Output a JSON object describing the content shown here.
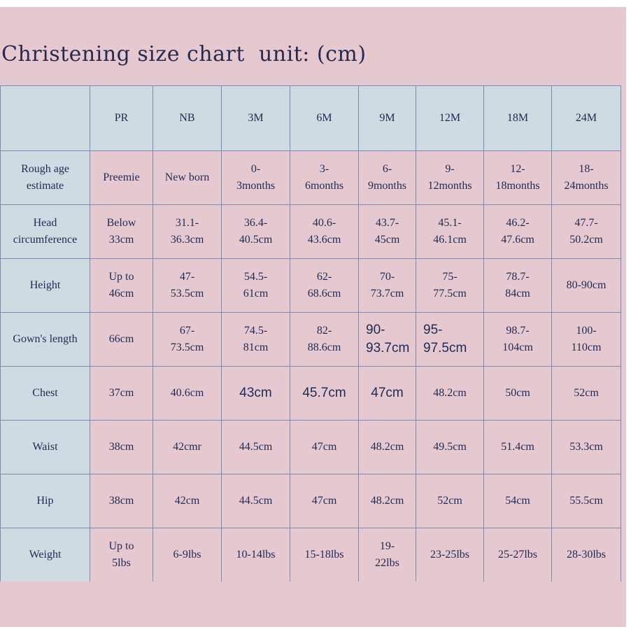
{
  "title": "Christening size chart  unit: (cm)",
  "sizes": [
    "PR",
    "NB",
    "3M",
    "6M",
    "9M",
    "12M",
    "18M",
    "24M"
  ],
  "rows": [
    {
      "label": "Rough age\nestimate",
      "cells": [
        "Preemie",
        "New born",
        "0-\n3months",
        "3-\n6months",
        "6-\n9months",
        "9-\n12months",
        "12-\n18months",
        "18-\n24months"
      ]
    },
    {
      "label": "Head\ncircumference",
      "cells": [
        "Below\n33cm",
        "31.1-\n36.3cm",
        "36.4-\n40.5cm",
        "40.6-\n43.6cm",
        "43.7-\n45cm",
        "45.1-\n46.1cm",
        "46.2-\n47.6cm",
        "47.7-\n50.2cm"
      ]
    },
    {
      "label": "Height",
      "cells": [
        "Up to\n46cm",
        "47-\n53.5cm",
        "54.5-\n61cm",
        "62-\n68.6cm",
        "70-\n73.7cm",
        "75-\n77.5cm",
        "78.7-\n84cm",
        "80-90cm"
      ]
    },
    {
      "label": "Gown's length",
      "cells": [
        "66cm",
        "67-\n73.5cm",
        "74.5-\n81cm",
        "82-\n88.6cm",
        "90-\n93.7cm",
        "95-\n97.5cm",
        "98.7-\n104cm",
        "100-\n110cm"
      ]
    },
    {
      "label": "Chest",
      "cells": [
        "37cm",
        "40.6cm",
        "43cm",
        "45.7cm",
        "47cm",
        "48.2cm",
        "50cm",
        "52cm"
      ]
    },
    {
      "label": "Waist",
      "cells": [
        "38cm",
        "42cmr",
        "44.5cm",
        "47cm",
        "48.2cm",
        "49.5cm",
        "51.4cm",
        "53.3cm"
      ]
    },
    {
      "label": "Hip",
      "cells": [
        "38cm",
        "42cm",
        "44.5cm",
        "47cm",
        "48.2cm",
        "52cm",
        "54cm",
        "55.5cm"
      ]
    },
    {
      "label": "Weight",
      "cells": [
        "Up to\n5lbs",
        "6-9lbs",
        "10-14lbs",
        "15-18lbs",
        "19-\n22lbs",
        "23-25lbs",
        "25-27lbs",
        "28-30lbs"
      ]
    }
  ]
}
